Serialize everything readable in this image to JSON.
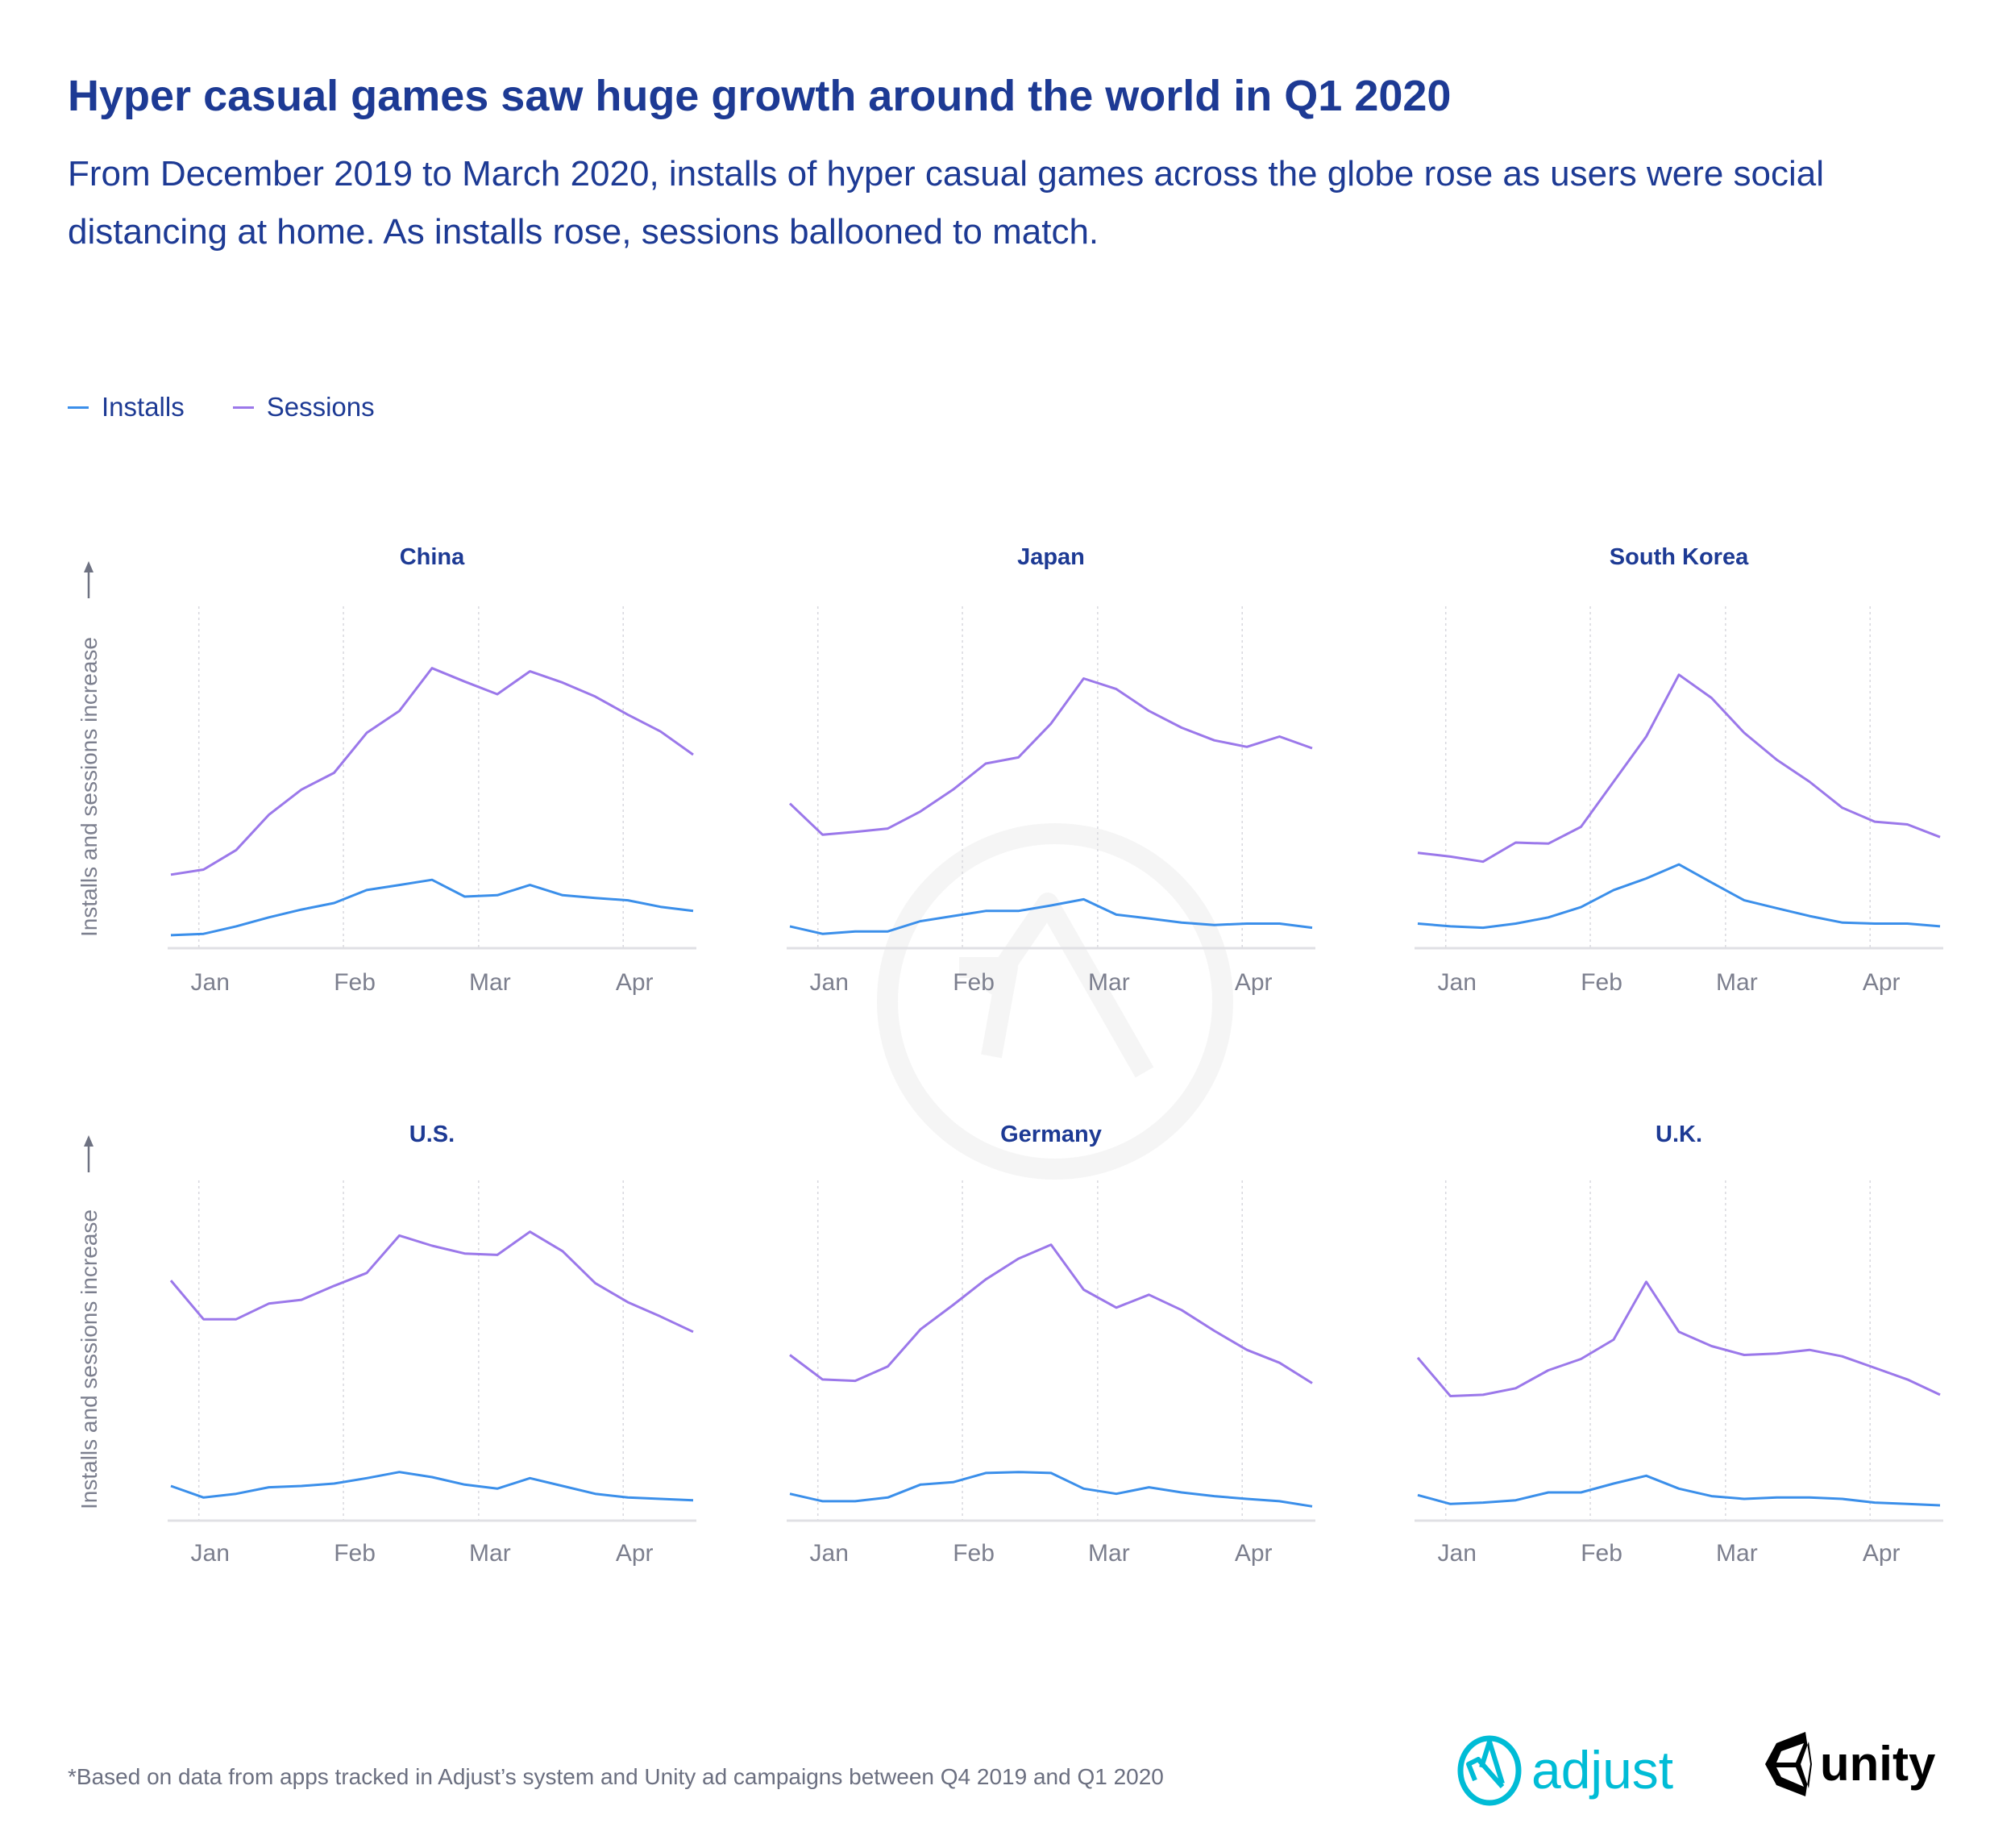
{
  "header": {
    "title": "Hyper casual games saw huge growth around the world in Q1 2020",
    "subtitle": "From December 2019 to March 2020, installs of hyper casual games across the globe rose as users were social distancing at home. As installs rose, sessions ballooned to match."
  },
  "legend": {
    "items": [
      {
        "label": "Installs",
        "color": "#3b8fea"
      },
      {
        "label": "Sessions",
        "color": "#9b78ea"
      }
    ],
    "placement": "top-left"
  },
  "footnote": "*Based on data from apps tracked in Adjust’s system and Unity ad campaigns between Q4 2019 and Q1 2020",
  "logos": {
    "adjust": "adjust",
    "unity": "unity",
    "adjust_color": "#00bcd6"
  },
  "colors": {
    "title": "#1d3a94",
    "installs": "#3b8fea",
    "sessions": "#9b78ea",
    "axis": "#e0e0e4",
    "grid": "#d8d8de"
  },
  "chart_data": [
    {
      "type": "line",
      "title": "China",
      "ylabel": "Installs and sessions increase",
      "yticks": "none",
      "grid": "vertical-dotted",
      "x": [
        "2019-12-26",
        "2020-01-02",
        "2020-01-09",
        "2020-01-16",
        "2020-01-23",
        "2020-01-30",
        "2020-02-06",
        "2020-02-13",
        "2020-02-20",
        "2020-02-27",
        "2020-03-05",
        "2020-03-12",
        "2020-03-19",
        "2020-03-26",
        "2020-04-02",
        "2020-04-09",
        "2020-04-16"
      ],
      "xticks": [
        {
          "label": "Jan",
          "date": "2020-01-01"
        },
        {
          "label": "Feb",
          "date": "2020-02-01"
        },
        {
          "label": "Mar",
          "date": "2020-03-01"
        },
        {
          "label": "Apr",
          "date": "2020-04-01"
        }
      ],
      "series": [
        {
          "name": "Installs",
          "values": [
            3.8,
            4.2,
            6.4,
            9,
            11.3,
            13.2,
            17,
            18.5,
            20,
            15.1,
            15.5,
            18.5,
            15.5,
            14.7,
            14,
            12.1,
            10.9
          ]
        },
        {
          "name": "Sessions",
          "values": [
            21.5,
            23,
            28.7,
            39,
            46.4,
            51.3,
            63,
            69.4,
            81.9,
            78,
            74.3,
            81,
            77.7,
            73.6,
            68.3,
            63.4,
            56.6
          ]
        }
      ]
    },
    {
      "type": "line",
      "title": "Japan",
      "yticks": "none",
      "grid": "vertical-dotted",
      "x": [
        "2019-12-26",
        "2020-01-02",
        "2020-01-09",
        "2020-01-16",
        "2020-01-23",
        "2020-01-30",
        "2020-02-06",
        "2020-02-13",
        "2020-02-20",
        "2020-02-27",
        "2020-03-05",
        "2020-03-12",
        "2020-03-19",
        "2020-03-26",
        "2020-04-02",
        "2020-04-09",
        "2020-04-16"
      ],
      "xticks": [
        {
          "label": "Jan",
          "date": "2020-01-01"
        },
        {
          "label": "Feb",
          "date": "2020-02-01"
        },
        {
          "label": "Mar",
          "date": "2020-03-01"
        },
        {
          "label": "Apr",
          "date": "2020-04-01"
        }
      ],
      "series": [
        {
          "name": "Installs",
          "values": [
            6.4,
            4.2,
            4.9,
            4.9,
            7.9,
            9.4,
            10.9,
            10.9,
            12.5,
            14.3,
            9.8,
            8.7,
            7.5,
            6.8,
            7.2,
            7.2,
            6
          ]
        },
        {
          "name": "Sessions",
          "values": [
            42.3,
            33.2,
            34,
            35,
            40,
            46.4,
            54,
            55.8,
            65.7,
            78.9,
            75.8,
            69.4,
            64.5,
            60.8,
            58.9,
            61.9,
            58.5
          ]
        }
      ]
    },
    {
      "type": "line",
      "title": "South Korea",
      "yticks": "none",
      "grid": "vertical-dotted",
      "x": [
        "2019-12-26",
        "2020-01-02",
        "2020-01-09",
        "2020-01-16",
        "2020-01-23",
        "2020-01-30",
        "2020-02-06",
        "2020-02-13",
        "2020-02-20",
        "2020-02-27",
        "2020-03-05",
        "2020-03-12",
        "2020-03-19",
        "2020-03-26",
        "2020-04-02",
        "2020-04-09",
        "2020-04-16"
      ],
      "xticks": [
        {
          "label": "Jan",
          "date": "2020-01-01"
        },
        {
          "label": "Feb",
          "date": "2020-02-01"
        },
        {
          "label": "Mar",
          "date": "2020-03-01"
        },
        {
          "label": "Apr",
          "date": "2020-04-01"
        }
      ],
      "series": [
        {
          "name": "Installs",
          "values": [
            7.2,
            6.4,
            6,
            7.2,
            9,
            12,
            17,
            20.4,
            24.5,
            19.2,
            14,
            11.7,
            9.4,
            7.5,
            7.2,
            7.2,
            6.4
          ]
        },
        {
          "name": "Sessions",
          "values": [
            27.9,
            26.8,
            25.3,
            30.9,
            30.6,
            35.5,
            48.7,
            61.9,
            80,
            73.2,
            63,
            55.1,
            48.7,
            41.1,
            37,
            36.2,
            32.5
          ]
        }
      ]
    },
    {
      "type": "line",
      "title": "U.S.",
      "ylabel": "Installs and sessions increase",
      "yticks": "none",
      "grid": "vertical-dotted",
      "x": [
        "2019-12-26",
        "2020-01-02",
        "2020-01-09",
        "2020-01-16",
        "2020-01-23",
        "2020-01-30",
        "2020-02-06",
        "2020-02-13",
        "2020-02-20",
        "2020-02-27",
        "2020-03-05",
        "2020-03-12",
        "2020-03-19",
        "2020-03-26",
        "2020-04-02",
        "2020-04-09",
        "2020-04-16"
      ],
      "xticks": [
        {
          "label": "Jan",
          "date": "2020-01-01"
        },
        {
          "label": "Feb",
          "date": "2020-02-01"
        },
        {
          "label": "Mar",
          "date": "2020-03-01"
        },
        {
          "label": "Apr",
          "date": "2020-04-01"
        }
      ],
      "series": [
        {
          "name": "Installs",
          "values": [
            10.2,
            6.8,
            7.9,
            9.8,
            10.2,
            10.9,
            12.5,
            14.3,
            12.8,
            10.6,
            9.4,
            12.5,
            10.2,
            7.9,
            6.8,
            6.4,
            6
          ]
        },
        {
          "name": "Sessions",
          "values": [
            70.6,
            59.2,
            59.2,
            63.8,
            64.9,
            69,
            72.8,
            83.8,
            80.8,
            78.5,
            78.1,
            84.9,
            79.2,
            69.8,
            64.2,
            60,
            55.5
          ]
        }
      ]
    },
    {
      "type": "line",
      "title": "Germany",
      "yticks": "none",
      "grid": "vertical-dotted",
      "x": [
        "2019-12-26",
        "2020-01-02",
        "2020-01-09",
        "2020-01-16",
        "2020-01-23",
        "2020-01-30",
        "2020-02-06",
        "2020-02-13",
        "2020-02-20",
        "2020-02-27",
        "2020-03-05",
        "2020-03-12",
        "2020-03-19",
        "2020-03-26",
        "2020-04-02",
        "2020-04-09",
        "2020-04-16"
      ],
      "xticks": [
        {
          "label": "Jan",
          "date": "2020-01-01"
        },
        {
          "label": "Feb",
          "date": "2020-02-01"
        },
        {
          "label": "Mar",
          "date": "2020-03-01"
        },
        {
          "label": "Apr",
          "date": "2020-04-01"
        }
      ],
      "series": [
        {
          "name": "Installs",
          "values": [
            7.9,
            5.7,
            5.7,
            6.8,
            10.6,
            11.3,
            14,
            14.3,
            14,
            9.4,
            7.9,
            9.8,
            8.3,
            7.2,
            6.4,
            5.7,
            4.2
          ]
        },
        {
          "name": "Sessions",
          "values": [
            48.7,
            41.5,
            41.1,
            45.3,
            56.2,
            63.4,
            70.9,
            77,
            81.1,
            67.9,
            62.6,
            66.4,
            61.9,
            55.8,
            50.2,
            46.4,
            40.4
          ]
        }
      ]
    },
    {
      "type": "line",
      "title": "U.K.",
      "yticks": "none",
      "grid": "vertical-dotted",
      "x": [
        "2019-12-26",
        "2020-01-02",
        "2020-01-09",
        "2020-01-16",
        "2020-01-23",
        "2020-01-30",
        "2020-02-06",
        "2020-02-13",
        "2020-02-20",
        "2020-02-27",
        "2020-03-05",
        "2020-03-12",
        "2020-03-19",
        "2020-03-26",
        "2020-04-02",
        "2020-04-09",
        "2020-04-16"
      ],
      "xticks": [
        {
          "label": "Jan",
          "date": "2020-01-01"
        },
        {
          "label": "Feb",
          "date": "2020-02-01"
        },
        {
          "label": "Mar",
          "date": "2020-03-01"
        },
        {
          "label": "Apr",
          "date": "2020-04-01"
        }
      ],
      "series": [
        {
          "name": "Installs",
          "values": [
            7.5,
            4.9,
            5.3,
            6,
            8.3,
            8.3,
            10.9,
            13.2,
            9.4,
            7.2,
            6.4,
            6.8,
            6.8,
            6.4,
            5.3,
            4.9,
            4.5
          ]
        },
        {
          "name": "Sessions",
          "values": [
            47.9,
            36.6,
            37,
            38.9,
            44.2,
            47.5,
            53.2,
            70.2,
            55.5,
            51.3,
            48.7,
            49.1,
            50.2,
            48.3,
            44.9,
            41.5,
            37
          ]
        }
      ]
    }
  ]
}
